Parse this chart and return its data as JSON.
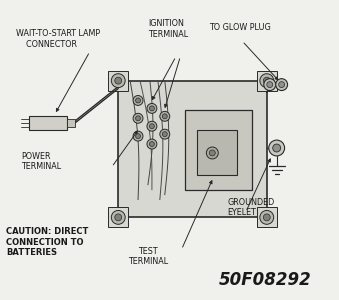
{
  "bg_color": "#f0f0ec",
  "diagram_id": "50F08292",
  "labels": {
    "wait_to_start": "WAIT-TO-START LAMP\n    CONNECTOR",
    "ignition": "IGNITION\nTERMINAL",
    "to_glow_plug": "TO GLOW PLUG",
    "power_terminal": "POWER\nTERMINAL",
    "caution": "CAUTION: DIRECT\nCONNECTION TO\nBATTERIES",
    "test_terminal": "TEST\nTERMINAL",
    "grounded_eyelet": "GROUNDED\nEYELET"
  },
  "line_color": "#2a2a2a",
  "text_color": "#1a1a1a",
  "box_face": "#d8d8d2",
  "inner_face": "#c8c8c0"
}
